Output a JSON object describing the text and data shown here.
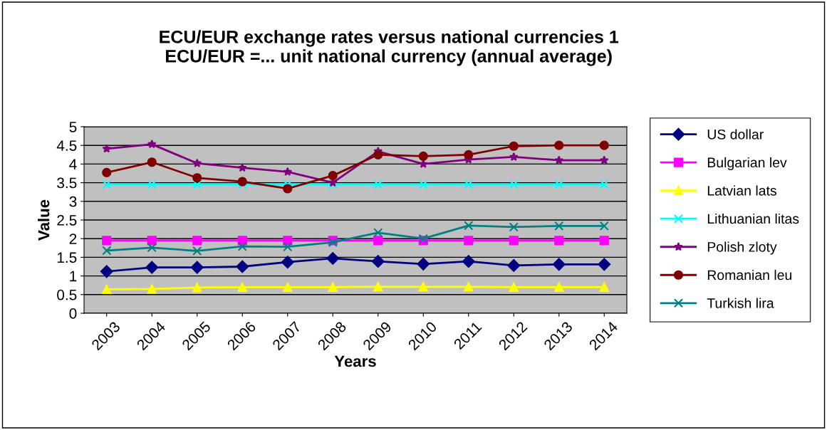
{
  "chart_data": {
    "type": "line",
    "title": "ECU/EUR exchange rates versus national currencies 1\nECU/EUR =... unit national currency (annual average)",
    "xlabel": "Years",
    "ylabel": "Value",
    "categories": [
      "2003",
      "2004",
      "2005",
      "2006",
      "2007",
      "2008",
      "2009",
      "2010",
      "2011",
      "2012",
      "2013",
      "2014"
    ],
    "ylim": [
      0,
      5
    ],
    "yticks": [
      0,
      0.5,
      1,
      1.5,
      2,
      2.5,
      3,
      3.5,
      4,
      4.5,
      5
    ],
    "grid": "y",
    "legend": "right",
    "line_style": "solid",
    "series": [
      {
        "name": "US dollar",
        "color": "#000080",
        "marker": "diamond",
        "values": [
          1.12,
          1.23,
          1.23,
          1.25,
          1.37,
          1.47,
          1.39,
          1.32,
          1.39,
          1.28,
          1.31,
          1.31
        ]
      },
      {
        "name": "Bulgarian lev",
        "color": "#ff00ff",
        "marker": "square",
        "values": [
          1.95,
          1.95,
          1.95,
          1.95,
          1.95,
          1.95,
          1.95,
          1.95,
          1.95,
          1.95,
          1.95,
          1.95
        ]
      },
      {
        "name": "Latvian lats",
        "color": "#ffff00",
        "marker": "triangle",
        "values": [
          0.64,
          0.65,
          0.69,
          0.7,
          0.7,
          0.7,
          0.71,
          0.71,
          0.71,
          0.7,
          0.7,
          0.7
        ]
      },
      {
        "name": "Lithuanian litas",
        "color": "#00ffff",
        "marker": "cross",
        "values": [
          3.45,
          3.45,
          3.45,
          3.45,
          3.45,
          3.45,
          3.45,
          3.45,
          3.45,
          3.45,
          3.45,
          3.45
        ]
      },
      {
        "name": "Polish zloty",
        "color": "#800080",
        "marker": "star",
        "values": [
          4.41,
          4.53,
          4.02,
          3.9,
          3.79,
          3.5,
          4.34,
          4.0,
          4.12,
          4.19,
          4.1,
          4.1
        ]
      },
      {
        "name": "Romanian leu",
        "color": "#800000",
        "marker": "circle",
        "values": [
          3.77,
          4.05,
          3.63,
          3.53,
          3.34,
          3.69,
          4.25,
          4.21,
          4.25,
          4.48,
          4.5,
          4.5
        ]
      },
      {
        "name": "Turkish lira",
        "color": "#008080",
        "marker": "cross",
        "values": [
          1.68,
          1.76,
          1.67,
          1.79,
          1.78,
          1.9,
          2.16,
          2.0,
          2.35,
          2.31,
          2.34,
          2.34
        ]
      }
    ]
  }
}
